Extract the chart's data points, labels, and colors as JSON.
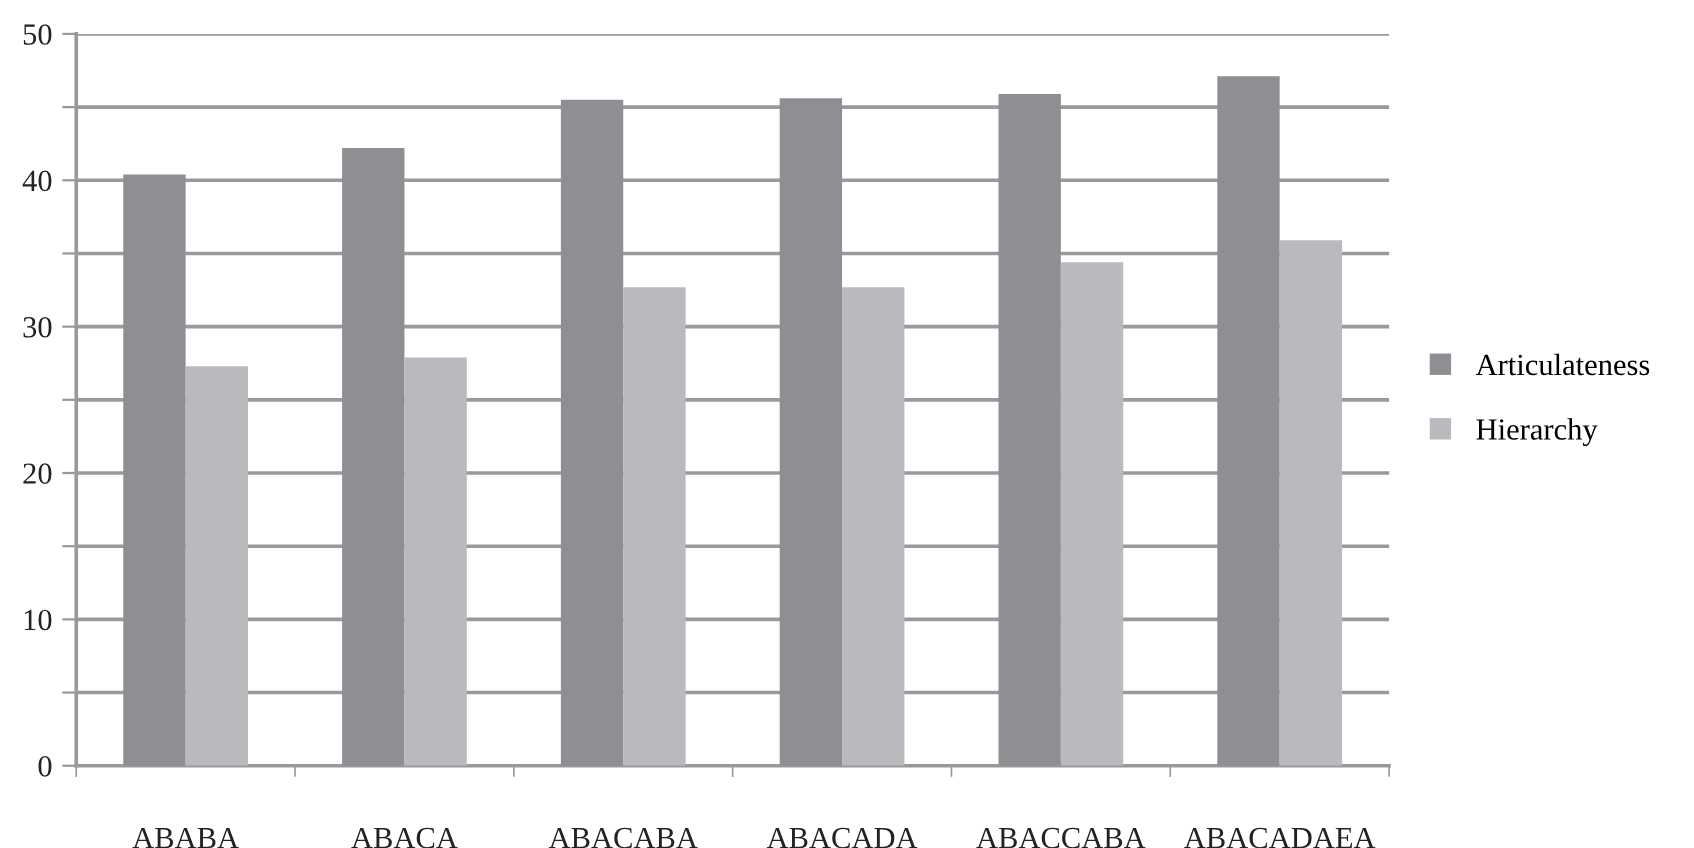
{
  "chart_data": {
    "type": "bar",
    "categories": [
      "ABABA",
      "ABACA",
      "ABACABA",
      "ABACADA",
      "ABACCABA",
      "ABACADAEA"
    ],
    "series": [
      {
        "name": "Articulateness",
        "color": "#8e8f93",
        "values": [
          40.4,
          42.2,
          45.5,
          45.6,
          45.9,
          47.1
        ]
      },
      {
        "name": "Hierarchy",
        "color": "#b9babe",
        "values": [
          27.3,
          27.9,
          32.7,
          32.7,
          34.4,
          35.9
        ]
      }
    ],
    "ylim": [
      0,
      50
    ],
    "yticks": [
      0,
      {
        "value": 5,
        "label": null
      },
      10,
      {
        "value": 15,
        "label": null
      },
      20,
      {
        "value": 25,
        "label": null
      },
      30,
      {
        "value": 35,
        "label": null
      },
      40,
      {
        "value": 45,
        "label": null
      },
      50
    ],
    "grid": "y",
    "legend": "right"
  }
}
